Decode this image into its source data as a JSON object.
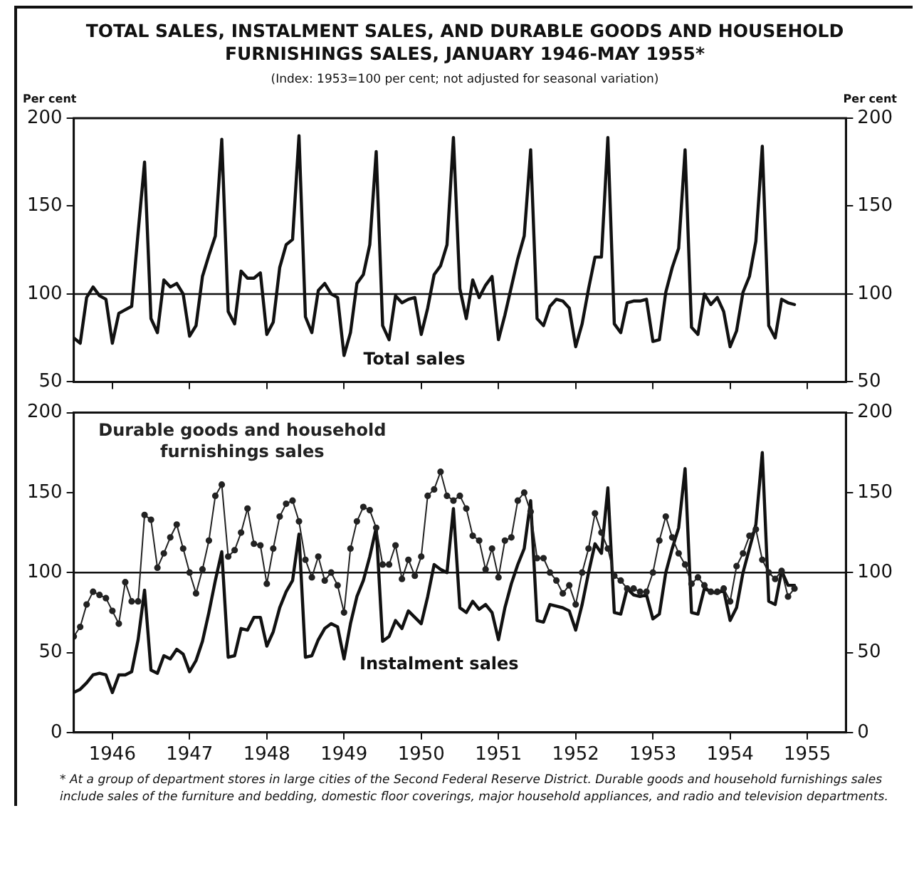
{
  "chart_data": [
    {
      "type": "line",
      "title": "TOTAL SALES, INSTALMENT SALES, AND DURABLE GOODS AND HOUSEHOLD FURNISHINGS SALES, JANUARY 1946-MAY 1955*",
      "subtitle": "(Index: 1953=100 per cent; not adjusted for seasonal variation)",
      "ylabel": "Per cent",
      "y2label": "Per cent",
      "x": [
        "1946-01",
        "1946-02",
        "1946-03",
        "1946-04",
        "1946-05",
        "1946-06",
        "1946-07",
        "1946-08",
        "1946-09",
        "1946-10",
        "1946-11",
        "1946-12",
        "1947-01",
        "1947-02",
        "1947-03",
        "1947-04",
        "1947-05",
        "1947-06",
        "1947-07",
        "1947-08",
        "1947-09",
        "1947-10",
        "1947-11",
        "1947-12",
        "1948-01",
        "1948-02",
        "1948-03",
        "1948-04",
        "1948-05",
        "1948-06",
        "1948-07",
        "1948-08",
        "1948-09",
        "1948-10",
        "1948-11",
        "1948-12",
        "1949-01",
        "1949-02",
        "1949-03",
        "1949-04",
        "1949-05",
        "1949-06",
        "1949-07",
        "1949-08",
        "1949-09",
        "1949-10",
        "1949-11",
        "1949-12",
        "1950-01",
        "1950-02",
        "1950-03",
        "1950-04",
        "1950-05",
        "1950-06",
        "1950-07",
        "1950-08",
        "1950-09",
        "1950-10",
        "1950-11",
        "1950-12",
        "1951-01",
        "1951-02",
        "1951-03",
        "1951-04",
        "1951-05",
        "1951-06",
        "1951-07",
        "1951-08",
        "1951-09",
        "1951-10",
        "1951-11",
        "1951-12",
        "1952-01",
        "1952-02",
        "1952-03",
        "1952-04",
        "1952-05",
        "1952-06",
        "1952-07",
        "1952-08",
        "1952-09",
        "1952-10",
        "1952-11",
        "1952-12",
        "1953-01",
        "1953-02",
        "1953-03",
        "1953-04",
        "1953-05",
        "1953-06",
        "1953-07",
        "1953-08",
        "1953-09",
        "1953-10",
        "1953-11",
        "1953-12",
        "1954-01",
        "1954-02",
        "1954-03",
        "1954-04",
        "1954-05",
        "1954-06",
        "1954-07",
        "1954-08",
        "1954-09",
        "1954-10",
        "1954-11",
        "1954-12",
        "1955-01",
        "1955-02",
        "1955-03",
        "1955-04",
        "1955-05"
      ],
      "series": [
        {
          "name": "Total sales",
          "color": "#111111",
          "marker": "none",
          "values": [
            75,
            72,
            98,
            104,
            99,
            97,
            72,
            89,
            91,
            93,
            135,
            175,
            86,
            78,
            108,
            104,
            106,
            100,
            76,
            82,
            110,
            122,
            133,
            188,
            90,
            83,
            113,
            109,
            109,
            112,
            77,
            84,
            115,
            128,
            131,
            190,
            87,
            78,
            102,
            106,
            100,
            98,
            65,
            78,
            106,
            111,
            128,
            181,
            82,
            74,
            99,
            95,
            97,
            98,
            77,
            92,
            111,
            116,
            128,
            189,
            103,
            86,
            108,
            98,
            105,
            110,
            74,
            88,
            104,
            120,
            133,
            182,
            86,
            82,
            93,
            97,
            96,
            92,
            70,
            83,
            103,
            121,
            121,
            189,
            83,
            78,
            95,
            96,
            96,
            97,
            73,
            74,
            101,
            115,
            126,
            182,
            81,
            77,
            100,
            94,
            98,
            90,
            70,
            79,
            101,
            110,
            130,
            184,
            82,
            75,
            97,
            95,
            94
          ]
        }
      ],
      "xlim": [
        "1946-01",
        "1956-01"
      ],
      "xticks": [
        {
          "value": "1946-07",
          "label": null
        },
        {
          "value": "1947-07",
          "label": null
        },
        {
          "value": "1948-07",
          "label": null
        },
        {
          "value": "1949-07",
          "label": null
        },
        {
          "value": "1950-07",
          "label": null
        },
        {
          "value": "1951-07",
          "label": null
        },
        {
          "value": "1952-07",
          "label": null
        },
        {
          "value": "1953-07",
          "label": null
        },
        {
          "value": "1954-07",
          "label": null
        },
        {
          "value": "1955-07",
          "label": null
        }
      ],
      "ylim": [
        50,
        200
      ],
      "yticks": [
        50,
        100,
        150,
        200
      ],
      "y2lim": [
        50,
        200
      ],
      "y2ticks": [
        50,
        100,
        150,
        200
      ],
      "ref_lines": [
        {
          "axis": "y",
          "value": 100,
          "color": "#111111"
        }
      ],
      "tick_labels": "y",
      "legend": false,
      "grid": false
    },
    {
      "type": "line",
      "x": [
        "1946-01",
        "1946-02",
        "1946-03",
        "1946-04",
        "1946-05",
        "1946-06",
        "1946-07",
        "1946-08",
        "1946-09",
        "1946-10",
        "1946-11",
        "1946-12",
        "1947-01",
        "1947-02",
        "1947-03",
        "1947-04",
        "1947-05",
        "1947-06",
        "1947-07",
        "1947-08",
        "1947-09",
        "1947-10",
        "1947-11",
        "1947-12",
        "1948-01",
        "1948-02",
        "1948-03",
        "1948-04",
        "1948-05",
        "1948-06",
        "1948-07",
        "1948-08",
        "1948-09",
        "1948-10",
        "1948-11",
        "1948-12",
        "1949-01",
        "1949-02",
        "1949-03",
        "1949-04",
        "1949-05",
        "1949-06",
        "1949-07",
        "1949-08",
        "1949-09",
        "1949-10",
        "1949-11",
        "1949-12",
        "1950-01",
        "1950-02",
        "1950-03",
        "1950-04",
        "1950-05",
        "1950-06",
        "1950-07",
        "1950-08",
        "1950-09",
        "1950-10",
        "1950-11",
        "1950-12",
        "1951-01",
        "1951-02",
        "1951-03",
        "1951-04",
        "1951-05",
        "1951-06",
        "1951-07",
        "1951-08",
        "1951-09",
        "1951-10",
        "1951-11",
        "1951-12",
        "1952-01",
        "1952-02",
        "1952-03",
        "1952-04",
        "1952-05",
        "1952-06",
        "1952-07",
        "1952-08",
        "1952-09",
        "1952-10",
        "1952-11",
        "1952-12",
        "1953-01",
        "1953-02",
        "1953-03",
        "1953-04",
        "1953-05",
        "1953-06",
        "1953-07",
        "1953-08",
        "1953-09",
        "1953-10",
        "1953-11",
        "1953-12",
        "1954-01",
        "1954-02",
        "1954-03",
        "1954-04",
        "1954-05",
        "1954-06",
        "1954-07",
        "1954-08",
        "1954-09",
        "1954-10",
        "1954-11",
        "1954-12",
        "1955-01",
        "1955-02",
        "1955-03",
        "1955-04",
        "1955-05"
      ],
      "series": [
        {
          "name": "Durable goods and household furnishings sales",
          "color": "#222222",
          "marker": "circle",
          "values": [
            60,
            66,
            80,
            88,
            86,
            84,
            76,
            68,
            94,
            82,
            82,
            136,
            133,
            103,
            112,
            122,
            130,
            115,
            100,
            87,
            102,
            120,
            148,
            155,
            110,
            114,
            125,
            140,
            118,
            117,
            93,
            115,
            135,
            143,
            145,
            132,
            108,
            97,
            110,
            95,
            100,
            92,
            75,
            115,
            132,
            141,
            139,
            128,
            105,
            105,
            117,
            96,
            108,
            98,
            110,
            148,
            152,
            163,
            148,
            145,
            148,
            140,
            123,
            120,
            102,
            115,
            97,
            120,
            122,
            145,
            150,
            138,
            109,
            109,
            100,
            95,
            87,
            92,
            80,
            100,
            115,
            137,
            125,
            115,
            98,
            95,
            90,
            90,
            88,
            88,
            100,
            120,
            135,
            122,
            112,
            105,
            93,
            97,
            92,
            88,
            88,
            90,
            82,
            104,
            112,
            123,
            127,
            108,
            100,
            96,
            101,
            85,
            90
          ]
        },
        {
          "name": "Instalment sales",
          "color": "#111111",
          "marker": "none",
          "values": [
            25,
            27,
            31,
            36,
            37,
            36,
            25,
            36,
            36,
            38,
            58,
            89,
            39,
            37,
            48,
            46,
            52,
            49,
            38,
            45,
            57,
            75,
            95,
            113,
            47,
            48,
            65,
            64,
            72,
            72,
            54,
            63,
            78,
            88,
            95,
            124,
            47,
            48,
            58,
            65,
            68,
            66,
            46,
            68,
            85,
            95,
            110,
            128,
            57,
            60,
            70,
            65,
            76,
            72,
            68,
            85,
            105,
            102,
            100,
            140,
            78,
            75,
            82,
            77,
            80,
            75,
            58,
            78,
            93,
            105,
            115,
            145,
            70,
            69,
            80,
            79,
            78,
            76,
            64,
            80,
            100,
            118,
            112,
            153,
            75,
            74,
            90,
            86,
            85,
            86,
            71,
            74,
            100,
            115,
            128,
            165,
            75,
            74,
            90,
            88,
            87,
            89,
            70,
            78,
            100,
            115,
            130,
            175,
            82,
            80,
            101,
            92,
            92
          ]
        }
      ],
      "xlim": [
        "1946-01",
        "1956-01"
      ],
      "xticks": [
        {
          "value": "1946-07",
          "label": "1946"
        },
        {
          "value": "1947-07",
          "label": "1947"
        },
        {
          "value": "1948-07",
          "label": "1948"
        },
        {
          "value": "1949-07",
          "label": "1949"
        },
        {
          "value": "1950-07",
          "label": "1950"
        },
        {
          "value": "1951-07",
          "label": "1951"
        },
        {
          "value": "1952-07",
          "label": "1952"
        },
        {
          "value": "1953-07",
          "label": "1953"
        },
        {
          "value": "1954-07",
          "label": "1954"
        },
        {
          "value": "1955-07",
          "label": "1955"
        }
      ],
      "ylim": [
        0,
        200
      ],
      "yticks": [
        0,
        50,
        100,
        150,
        200
      ],
      "y2lim": [
        0,
        200
      ],
      "y2ticks": [
        0,
        50,
        100,
        150,
        200
      ],
      "ref_lines": [
        {
          "axis": "y",
          "value": 100,
          "color": "#111111"
        }
      ],
      "annotations": [
        "* At a group of department stores in large cities of the Second Federal Reserve District. Durable goods and household furnishings sales include sales of the furniture and bedding, domestic floor coverings, major household appliances, and radio and television departments."
      ],
      "legend": false,
      "grid": false
    }
  ]
}
